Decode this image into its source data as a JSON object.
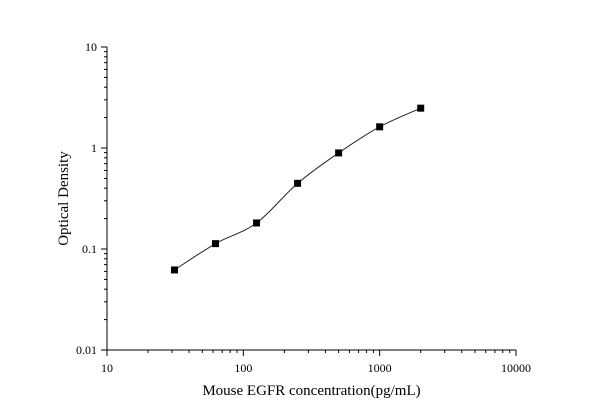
{
  "chart_data": {
    "type": "scatter",
    "title": "",
    "xlabel": "Mouse EGFR concentration(pg/mL)",
    "ylabel": "Optical Density",
    "x_scale": "log",
    "y_scale": "log",
    "xlim": [
      10,
      10000
    ],
    "ylim": [
      0.01,
      10
    ],
    "x_ticks": [
      "10",
      "100",
      "1000",
      "10000"
    ],
    "y_ticks": [
      "0.01",
      "0.1",
      "1",
      "10"
    ],
    "grid": false,
    "legend": "none",
    "series": [
      {
        "x": [
          31.25,
          62.5,
          125,
          250,
          500,
          1000,
          2000
        ],
        "y": [
          0.062,
          0.113,
          0.181,
          0.447,
          0.894,
          1.62,
          2.48
        ],
        "marker": "square",
        "fit_curve": true
      }
    ]
  }
}
